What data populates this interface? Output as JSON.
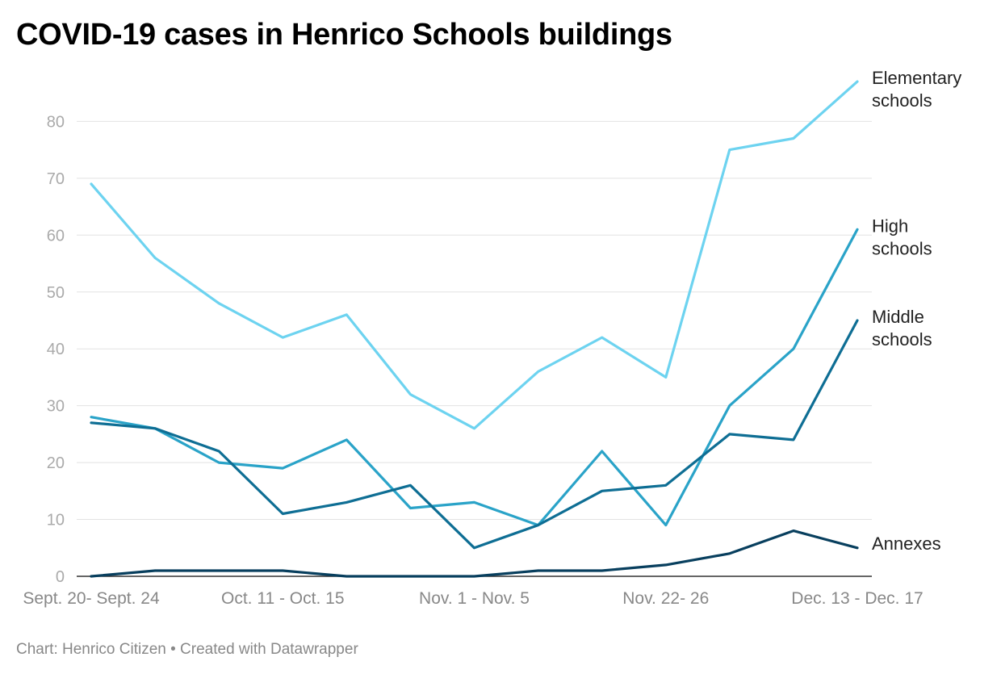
{
  "page": {
    "title": "COVID-19 cases in Henrico Schools buildings",
    "footer": "Chart: Henrico Citizen • Created with Datawrapper"
  },
  "chart_data": {
    "type": "line",
    "title": "COVID-19 cases in Henrico Schools buildings",
    "xlabel": "",
    "ylabel": "",
    "ylim": [
      0,
      87
    ],
    "yticks": [
      0,
      10,
      20,
      30,
      40,
      50,
      60,
      70,
      80
    ],
    "grid": true,
    "x_tick_labels": [
      {
        "index": 0,
        "label": "Sept. 20- Sept. 24"
      },
      {
        "index": 3,
        "label": "Oct. 11 - Oct. 15"
      },
      {
        "index": 6,
        "label": "Nov. 1 - Nov. 5"
      },
      {
        "index": 9,
        "label": "Nov. 22- 26"
      },
      {
        "index": 12,
        "label": "Dec. 13 - Dec. 17"
      }
    ],
    "series": [
      {
        "name": "Elementary schools",
        "label_lines": [
          "Elementary",
          "schools"
        ],
        "color": "#6dd3f0",
        "values": [
          69,
          56,
          48,
          42,
          46,
          32,
          26,
          36,
          42,
          35,
          75,
          77,
          87
        ]
      },
      {
        "name": "High schools",
        "label_lines": [
          "High",
          "schools"
        ],
        "color": "#2aa3c8",
        "values": [
          28,
          26,
          20,
          19,
          24,
          12,
          13,
          9,
          22,
          9,
          30,
          40,
          61
        ]
      },
      {
        "name": "Middle schools",
        "label_lines": [
          "Middle",
          "schools"
        ],
        "color": "#0e6e94",
        "values": [
          27,
          26,
          22,
          11,
          13,
          16,
          5,
          9,
          15,
          16,
          25,
          24,
          45
        ]
      },
      {
        "name": "Annexes",
        "label_lines": [
          "Annexes"
        ],
        "color": "#083f5e",
        "values": [
          0,
          1,
          1,
          1,
          0,
          0,
          0,
          1,
          1,
          2,
          4,
          8,
          5
        ]
      }
    ]
  }
}
